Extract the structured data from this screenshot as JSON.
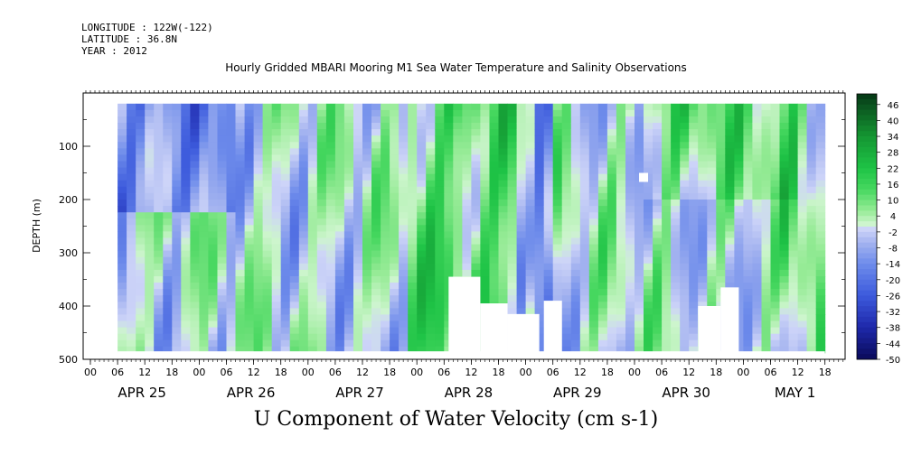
{
  "header": {
    "longitude": "LONGITUDE : 122W(-122)",
    "latitude": "LATITUDE : 36.8N",
    "year": "YEAR : 2012"
  },
  "chart_data": {
    "type": "heatmap",
    "title": "Hourly Gridded MBARI Mooring M1 Sea Water Temperature and Salinity Observations",
    "subtitle": "U Component of Water Velocity (cm s-1)",
    "ylabel": "DEPTH (m)",
    "xlabel": "",
    "ylim": [
      500,
      0
    ],
    "yticks": [
      100,
      200,
      300,
      400,
      500
    ],
    "x_hour_ticks": [
      "00",
      "06",
      "12",
      "18",
      "00",
      "06",
      "12",
      "18",
      "00",
      "06",
      "12",
      "18",
      "00",
      "06",
      "12",
      "18",
      "00",
      "06",
      "12",
      "18",
      "00",
      "06",
      "12",
      "18",
      "00",
      "06",
      "12",
      "18"
    ],
    "x_day_labels": [
      "APR 25",
      "APR 26",
      "APR 27",
      "APR 28",
      "APR 29",
      "APR 30",
      "MAY  1"
    ],
    "colorbar": {
      "labels": [
        "46",
        "40",
        "34",
        "28",
        "22",
        "16",
        "10",
        "4",
        "-2",
        "-8",
        "-14",
        "-20",
        "-26",
        "-32",
        "-38",
        "-44",
        "-50"
      ],
      "range": [
        -50,
        50
      ]
    }
  },
  "colors": {
    "negative_strong": "#1a237e",
    "negative_mid": "#5a78e0",
    "negative_weak": "#b9c3f0",
    "positive_weak": "#b8f0b8",
    "positive_mid": "#1ed24a",
    "positive_strong": "#0a5c1e"
  }
}
